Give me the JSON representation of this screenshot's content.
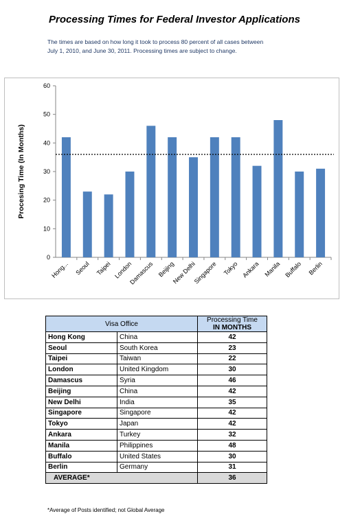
{
  "title": "Processing Times for Federal Investor Applications",
  "subtitle": "The times are based on how long it took to process 80 percent of all cases between July 1, 2010, and June 30, 2011. Processing times are subject to change.",
  "chart_data": {
    "type": "bar",
    "title": "",
    "ylabel": "Procesing Time (In Months)",
    "xlabel": "",
    "ylim": [
      0,
      60
    ],
    "yticks": [
      0,
      10,
      20,
      30,
      40,
      50,
      60
    ],
    "grid": false,
    "bar_color": "#4f81bd",
    "reference_line": 36,
    "categories": [
      "Hong...",
      "Seoul",
      "Taipei",
      "London",
      "Damascus",
      "Beijing",
      "New Delhi",
      "Singapore",
      "Tokyo",
      "Ankara",
      "Manila",
      "Buffalo",
      "Berlin"
    ],
    "values": [
      42,
      23,
      22,
      30,
      46,
      42,
      35,
      42,
      42,
      32,
      48,
      30,
      31
    ]
  },
  "table": {
    "header_office": "Visa Office",
    "header_time_line1": "Processing Time",
    "header_time_line2": "IN MONTHS",
    "header_color": "#c5d9f1",
    "rows": [
      {
        "city": "Hong Kong",
        "country": "China",
        "months": "42"
      },
      {
        "city": "Seoul",
        "country": "South Korea",
        "months": "23"
      },
      {
        "city": "Taipei",
        "country": "Taiwan",
        "months": "22"
      },
      {
        "city": "London",
        "country": "United Kingdom",
        "months": "30"
      },
      {
        "city": "Damascus",
        "country": "Syria",
        "months": "46"
      },
      {
        "city": "Beijing",
        "country": "China",
        "months": "42"
      },
      {
        "city": "New Delhi",
        "country": "India",
        "months": "35"
      },
      {
        "city": "Singapore",
        "country": "Singapore",
        "months": "42"
      },
      {
        "city": "Tokyo",
        "country": "Japan",
        "months": "42"
      },
      {
        "city": "Ankara",
        "country": "Turkey",
        "months": "32"
      },
      {
        "city": "Manila",
        "country": "Philippines",
        "months": "48"
      },
      {
        "city": "Buffalo",
        "country": "United States",
        "months": "30"
      },
      {
        "city": "Berlin",
        "country": "Germany",
        "months": "31"
      }
    ],
    "average_label": "AVERAGE*",
    "average_value": "36"
  },
  "footnote": "*Average of Posts identified; not Global Average"
}
